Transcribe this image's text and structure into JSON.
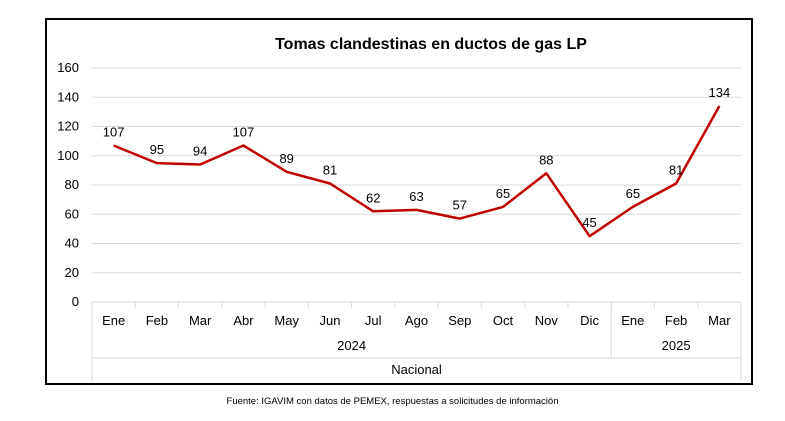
{
  "chart_data": {
    "type": "line",
    "title": "Tomas clandestinas en ductos de gas LP",
    "categories": [
      "Ene",
      "Feb",
      "Mar",
      "Abr",
      "May",
      "Jun",
      "Jul",
      "Ago",
      "Sep",
      "Oct",
      "Nov",
      "Dic",
      "Ene",
      "Feb",
      "Mar"
    ],
    "values": [
      107,
      95,
      94,
      107,
      89,
      81,
      62,
      63,
      57,
      65,
      88,
      45,
      65,
      81,
      134
    ],
    "year_groups": [
      {
        "label": "2024",
        "start": 0,
        "count": 12
      },
      {
        "label": "2025",
        "start": 12,
        "count": 3
      }
    ],
    "outer_group": "Nacional",
    "ylim": [
      0,
      160
    ],
    "yticks": [
      0,
      20,
      40,
      60,
      80,
      100,
      120,
      140,
      160
    ],
    "grid": true,
    "line_color": "#c00000",
    "xlabel": "",
    "ylabel": ""
  },
  "source": "Fuente: IGAVIM con datos de PEMEX, respuestas a solicitudes de información"
}
